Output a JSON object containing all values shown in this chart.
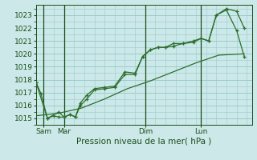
{
  "title": "Pression niveau de la mer( hPa )",
  "bg_color": "#cce8e8",
  "grid_color": "#99cccc",
  "line_color": "#2d6e2d",
  "dark_line_color": "#1a4d1a",
  "ylim": [
    1014.5,
    1023.8
  ],
  "yticks": [
    1015,
    1016,
    1017,
    1018,
    1019,
    1020,
    1021,
    1022,
    1023
  ],
  "xlim": [
    0,
    8.5
  ],
  "day_labels": [
    "Sam",
    "Mar",
    "Dim",
    "Lun"
  ],
  "day_positions": [
    0.3,
    1.1,
    4.3,
    6.5
  ],
  "vline_positions": [
    0.3,
    1.1,
    4.3,
    6.5
  ],
  "series1_x": [
    0.0,
    0.2,
    0.45,
    0.7,
    0.9,
    1.1,
    1.35,
    1.55,
    1.75,
    2.0,
    2.3,
    2.7,
    3.1,
    3.5,
    3.9,
    4.2,
    4.5,
    4.8,
    5.1,
    5.4,
    5.8,
    6.2,
    6.5,
    6.8,
    7.1,
    7.5,
    7.9,
    8.2
  ],
  "series1_y": [
    1017.8,
    1016.9,
    1015.0,
    1015.2,
    1015.1,
    1015.1,
    1015.3,
    1015.1,
    1016.2,
    1016.8,
    1017.3,
    1017.4,
    1017.5,
    1018.6,
    1018.5,
    1019.8,
    1020.3,
    1020.5,
    1020.5,
    1020.8,
    1020.8,
    1021.0,
    1021.2,
    1021.0,
    1023.0,
    1023.5,
    1023.3,
    1022.0
  ],
  "series2_x": [
    0.0,
    0.45,
    0.9,
    1.1,
    1.35,
    1.55,
    1.75,
    2.0,
    2.3,
    2.7,
    3.1,
    3.5,
    3.9,
    4.2,
    4.5,
    4.8,
    5.1,
    5.4,
    5.8,
    6.2,
    6.5,
    6.8,
    7.1,
    7.5,
    7.9,
    8.2
  ],
  "series2_y": [
    1017.8,
    1015.0,
    1015.5,
    1015.1,
    1015.3,
    1015.1,
    1016.0,
    1016.5,
    1017.2,
    1017.3,
    1017.4,
    1018.4,
    1018.4,
    1019.8,
    1020.3,
    1020.5,
    1020.5,
    1020.6,
    1020.8,
    1020.9,
    1021.2,
    1021.0,
    1023.0,
    1023.4,
    1021.8,
    1019.8
  ],
  "series3_x": [
    0.0,
    0.9,
    1.8,
    2.7,
    3.6,
    4.5,
    5.4,
    6.3,
    7.2,
    8.2
  ],
  "series3_y": [
    1015.2,
    1015.4,
    1015.8,
    1016.5,
    1017.3,
    1017.9,
    1018.6,
    1019.3,
    1019.9,
    1020.0
  ]
}
